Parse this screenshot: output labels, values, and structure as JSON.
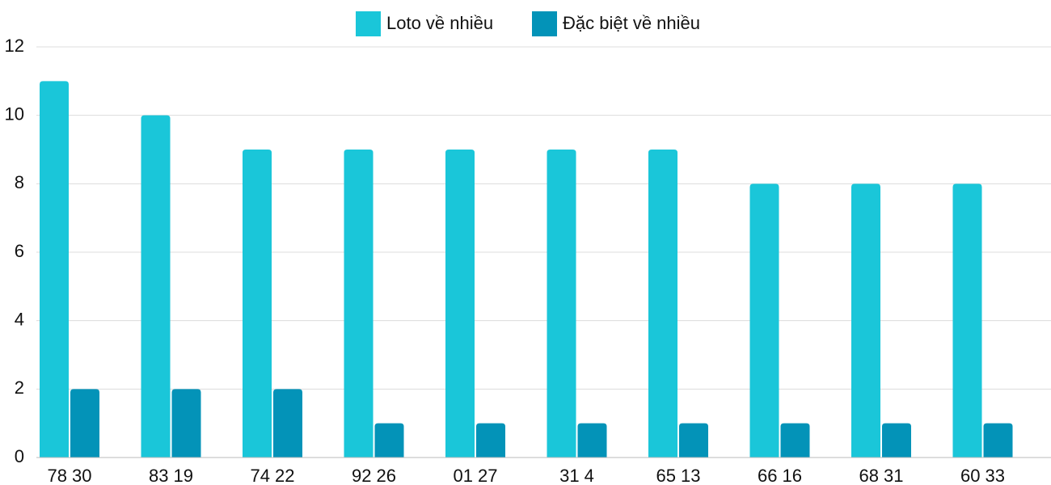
{
  "chart_data": {
    "type": "bar",
    "categories": [
      "78 30",
      "83 19",
      "74 22",
      "92 26",
      "01 27",
      "31 4",
      "65 13",
      "66 16",
      "68 31",
      "60 33"
    ],
    "series": [
      {
        "name": "Loto về nhiều",
        "color": "#1ac6d9",
        "values": [
          11,
          10,
          9,
          9,
          9,
          9,
          9,
          8,
          8,
          8
        ]
      },
      {
        "name": "Đặc biệt về nhiều",
        "color": "#0393b8",
        "values": [
          2,
          2,
          2,
          1,
          1,
          1,
          1,
          1,
          1,
          1
        ]
      }
    ],
    "ylim": [
      0,
      12
    ],
    "yticks": [
      0,
      2,
      4,
      6,
      8,
      10,
      12
    ],
    "grid": true,
    "legend": "top"
  }
}
